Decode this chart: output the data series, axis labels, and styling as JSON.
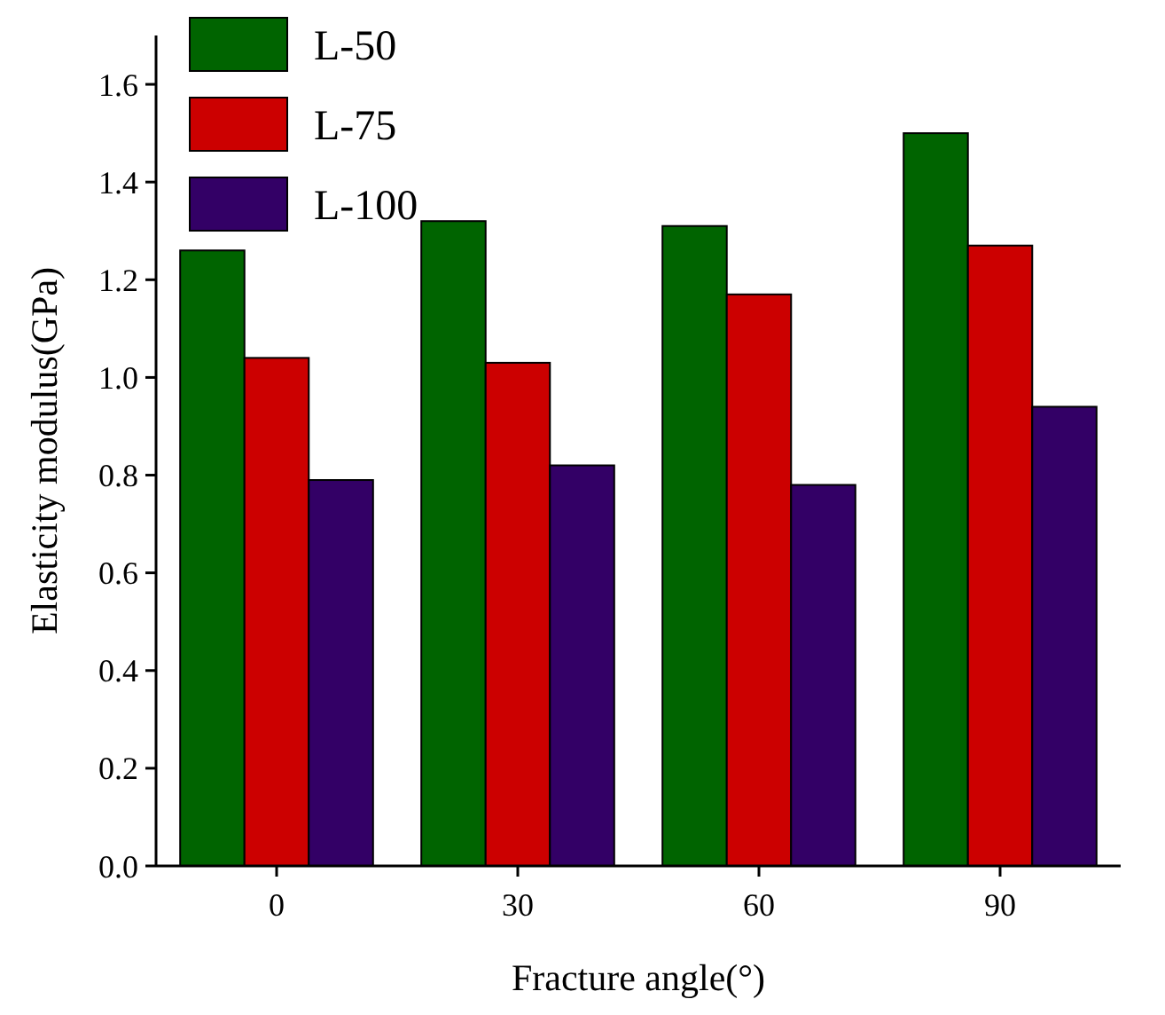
{
  "chart_data": {
    "type": "bar",
    "xlabel": "Fracture angle(°)",
    "ylabel": "Elasticity modulus(GPa)",
    "categories": [
      "0",
      "30",
      "60",
      "90"
    ],
    "series": [
      {
        "name": "L-50",
        "color": "#006400",
        "values": [
          1.26,
          1.32,
          1.31,
          1.5
        ]
      },
      {
        "name": "L-75",
        "color": "#cc0000",
        "values": [
          1.04,
          1.03,
          1.17,
          1.27
        ]
      },
      {
        "name": "L-100",
        "color": "#330066",
        "values": [
          0.79,
          0.82,
          0.78,
          0.94
        ]
      }
    ],
    "ylim": [
      0,
      1.7
    ],
    "yticks": [
      {
        "value": 0,
        "label": "0.0"
      },
      0.2,
      0.4,
      0.6,
      0.8,
      {
        "value": 1,
        "label": "1.0"
      },
      1.2,
      1.4,
      1.6
    ],
    "grid": false,
    "legend": "top left"
  }
}
